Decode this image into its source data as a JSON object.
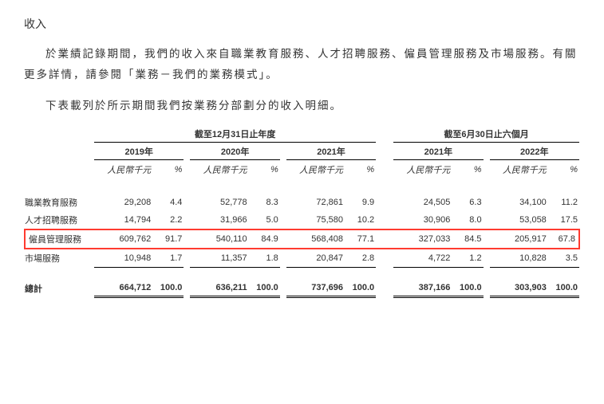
{
  "section_title": "收入",
  "paragraph1": "於業績記錄期間，我們的收入來自職業教育服務、人才招聘服務、僱員管理服務及市場服務。有關更多詳情，請參閱「業務－我們的業務模式」。",
  "paragraph2": "下表載列於所示期間我們按業務分部劃分的收入明細。",
  "table": {
    "group_headers": [
      "截至12月31日止年度",
      "截至6月30日止六個月"
    ],
    "years": [
      "2019年",
      "2020年",
      "2021年",
      "2021年",
      "2022年"
    ],
    "unit_amount": "人民幣千元",
    "unit_pct": "%",
    "rows": [
      {
        "label": "職業教育服務",
        "cells": [
          "29,208",
          "4.4",
          "52,778",
          "8.3",
          "72,861",
          "9.9",
          "24,505",
          "6.3",
          "34,100",
          "11.2"
        ],
        "highlight": false
      },
      {
        "label": "人才招聘服務",
        "cells": [
          "14,794",
          "2.2",
          "31,966",
          "5.0",
          "75,580",
          "10.2",
          "30,906",
          "8.0",
          "53,058",
          "17.5"
        ],
        "highlight": false
      },
      {
        "label": "僱員管理服務",
        "cells": [
          "609,762",
          "91.7",
          "540,110",
          "84.9",
          "568,408",
          "77.1",
          "327,033",
          "84.5",
          "205,917",
          "67.8"
        ],
        "highlight": true
      },
      {
        "label": "市場服務",
        "cells": [
          "10,948",
          "1.7",
          "11,357",
          "1.8",
          "20,847",
          "2.8",
          "4,722",
          "1.2",
          "10,828",
          "3.5"
        ],
        "highlight": false
      }
    ],
    "total": {
      "label": "總計",
      "cells": [
        "664,712",
        "100.0",
        "636,211",
        "100.0",
        "737,696",
        "100.0",
        "387,166",
        "100.0",
        "303,903",
        "100.0"
      ]
    }
  },
  "styling": {
    "highlight_border_color": "#ff3b30",
    "text_color": "#333333",
    "background_color": "#ffffff",
    "font_family": "Microsoft YaHei, SimSun, sans-serif",
    "title_fontsize": 14,
    "body_fontsize": 13.5,
    "table_fontsize": 11
  }
}
